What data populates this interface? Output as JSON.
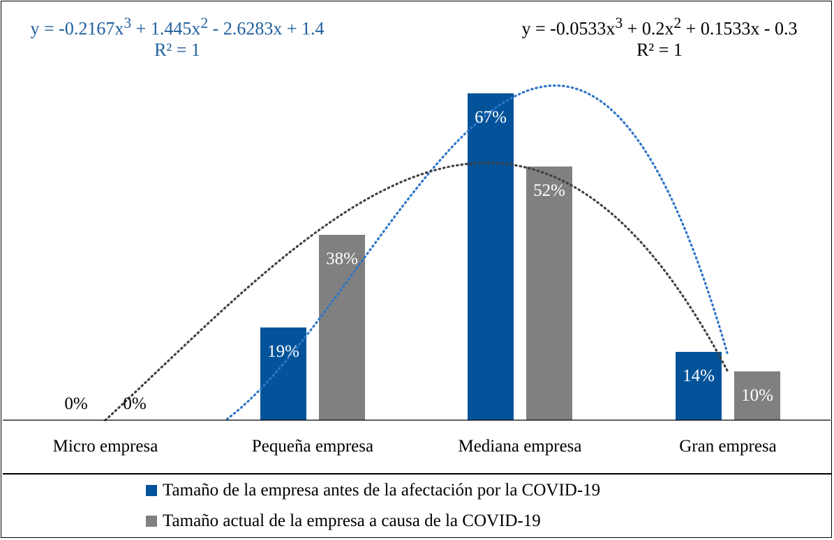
{
  "chart_data": {
    "type": "bar",
    "categories": [
      "Micro empresa",
      "Pequeña empresa",
      "Mediana empresa",
      "Gran empresa"
    ],
    "series": [
      {
        "name": "Tamaño de la empresa antes de la afectación por la COVID-19",
        "values": [
          0,
          19,
          67,
          14
        ],
        "labels": [
          "0%",
          "19%",
          "67%",
          "14%"
        ],
        "color": "#03539b"
      },
      {
        "name": "Tamaño actual de la empresa a causa de la COVID-19",
        "values": [
          0,
          38,
          52,
          10
        ],
        "labels": [
          "0%",
          "38%",
          "52%",
          "10%"
        ],
        "color": "#808080"
      }
    ],
    "ylim": [
      0,
      70
    ],
    "trendlines": [
      {
        "series": 0,
        "type": "polynomial",
        "order": 3,
        "color": "#2e75c8",
        "coefficients": [
          -0.2167,
          1.445,
          -2.6283,
          1.4
        ],
        "equation": {
          "y": "y = -0.2167x",
          "a": " + 1.445x",
          "b": " - 2.6283x + 1.4"
        },
        "r2": "R² = 1"
      },
      {
        "series": 1,
        "type": "polynomial",
        "order": 3,
        "color": "#404040",
        "coefficients": [
          -0.0533,
          0.2,
          0.1533,
          -0.3
        ],
        "equation": {
          "y": "y = -0.0533x",
          "a": " + 0.2x",
          "b": " + 0.1533x - 0.3"
        },
        "r2": "R² = 1"
      }
    ],
    "exponent_cube": "3",
    "exponent_square": "2",
    "grid": false,
    "legend_position": "bottom"
  }
}
